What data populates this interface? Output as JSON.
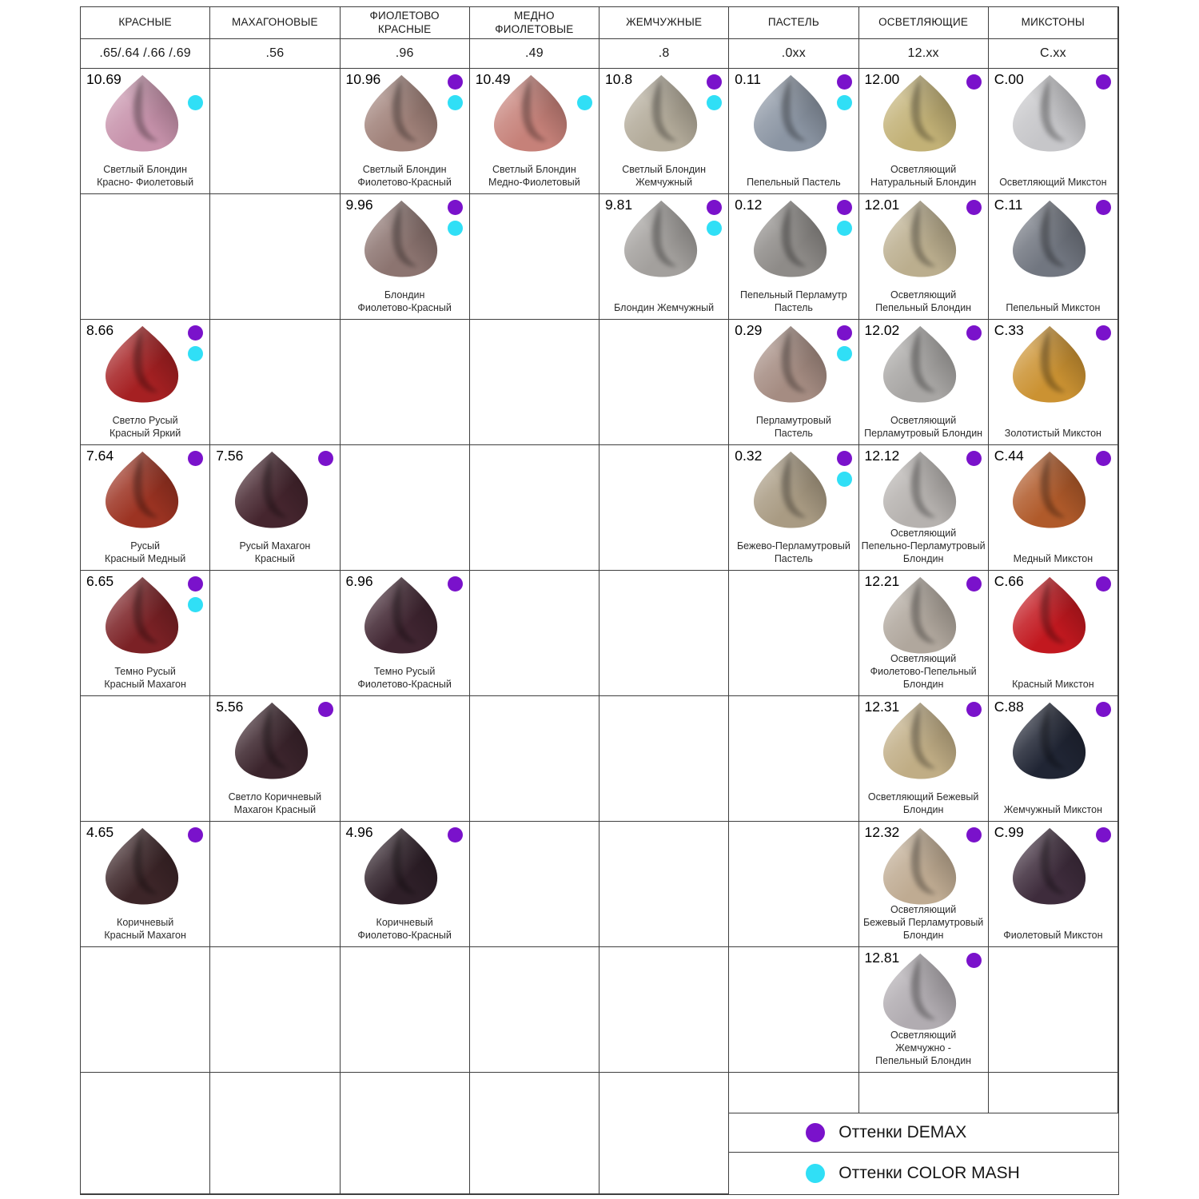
{
  "colors": {
    "demax_dot": "#7a12cb",
    "color_mash_dot": "#30dff6",
    "grid_line": "#3f3f3f"
  },
  "chart_data": {
    "type": "table",
    "columns": [
      {
        "name": "КРАСНЫЕ",
        "code": ".65/.64 /.66 /.69"
      },
      {
        "name": "МАХАГОНОВЫЕ",
        "code": ".56"
      },
      {
        "name": "ФИОЛЕТОВО\nКРАСНЫЕ",
        "code": ".96"
      },
      {
        "name": "МЕДНО\nФИОЛЕТОВЫЕ",
        "code": ".49"
      },
      {
        "name": "ЖЕМЧУЖНЫЕ",
        "code": ".8"
      },
      {
        "name": "ПАСТЕЛЬ",
        "code": ".0xx"
      },
      {
        "name": "ОСВЕТЛЯЮЩИЕ",
        "code": "12.xx"
      },
      {
        "name": "МИКСТОНЫ",
        "code": "C.xx"
      }
    ],
    "rows": [
      {
        "cells": [
          {
            "code": "10.69",
            "label": "Светлый Блондин\nКрасно- Фиолетовый",
            "color": "#c792ab",
            "demax": false,
            "mash": true
          },
          null,
          {
            "code": "10.96",
            "label": "Светлый Блондин\nФиолетово-Красный",
            "color": "#a08179",
            "demax": true,
            "mash": true
          },
          {
            "code": "10.49",
            "label": "Светлый Блондин\nМедно-Фиолетовый",
            "color": "#c68179",
            "demax": false,
            "mash": true
          },
          {
            "code": "10.8",
            "label": "Светлый Блондин\nЖемчужный",
            "color": "#b3ab9a",
            "demax": true,
            "mash": true
          },
          {
            "code": "0.11",
            "label": "Пепельный Пастель",
            "color": "#8b95a3",
            "demax": true,
            "mash": true
          },
          {
            "code": "12.00",
            "label": "Осветляющий\nНатуральный Блондин",
            "color": "#c2b176",
            "demax": true,
            "mash": false
          },
          {
            "code": "C.00",
            "label": "Осветляющий Микстон",
            "color": "#c6c6c9",
            "demax": true,
            "mash": false
          }
        ]
      },
      {
        "cells": [
          null,
          null,
          {
            "code": "9.96",
            "label": "Блондин\nФиолетово-Красный",
            "color": "#8c7470",
            "demax": true,
            "mash": true
          },
          null,
          {
            "code": "9.81",
            "label": "Блондин Жемчужный",
            "color": "#a3a09d",
            "demax": true,
            "mash": true
          },
          {
            "code": "0.12",
            "label": "Пепельный Перламутр\nПастель",
            "color": "#8e8b88",
            "demax": true,
            "mash": true
          },
          {
            "code": "12.01",
            "label": "Осветляющий\nПепельный Блондин",
            "color": "#bbae8e",
            "demax": true,
            "mash": false
          },
          {
            "code": "C.11",
            "label": "Пепельный Микстон",
            "color": "#717680",
            "demax": true,
            "mash": false
          }
        ]
      },
      {
        "cells": [
          {
            "code": "8.66",
            "label": "Светло Русый\nКрасный Яркий",
            "color": "#a52022",
            "demax": true,
            "mash": true
          },
          null,
          null,
          null,
          null,
          {
            "code": "0.29",
            "label": "Перламутровый\nПастель",
            "color": "#a58c82",
            "demax": true,
            "mash": true
          },
          {
            "code": "12.02",
            "label": "Осветляющий\nПерламутровый Блондин",
            "color": "#a8a6a4",
            "demax": true,
            "mash": false
          },
          {
            "code": "C.33",
            "label": "Золотистый Микстон",
            "color": "#cb9232",
            "demax": true,
            "mash": false
          }
        ]
      },
      {
        "cells": [
          {
            "code": "7.64",
            "label": "Русый\nКрасный Медный",
            "color": "#9c3322",
            "demax": true,
            "mash": false
          },
          {
            "code": "7.56",
            "label": "Русый Махагон\nКрасный",
            "color": "#45252e",
            "demax": true,
            "mash": false
          },
          null,
          null,
          null,
          {
            "code": "0.32",
            "label": "Бежево-Перламутровый\nПастель",
            "color": "#a99b83",
            "demax": true,
            "mash": true
          },
          {
            "code": "12.12",
            "label": "Осветляющий\nПепельно-Перламутровый\nБлондин",
            "color": "#b6b2af",
            "demax": true,
            "mash": false
          },
          {
            "code": "C.44",
            "label": "Медный Микстон",
            "color": "#b05a2a",
            "demax": true,
            "mash": false
          }
        ]
      },
      {
        "cells": [
          {
            "code": "6.65",
            "label": "Темно Русый\nКрасный Махагон",
            "color": "#7b2125",
            "demax": true,
            "mash": true
          },
          null,
          {
            "code": "6.96",
            "label": "Темно Русый\nФиолетово-Красный",
            "color": "#402531",
            "demax": true,
            "mash": false
          },
          null,
          null,
          null,
          {
            "code": "12.21",
            "label": "Осветляющий\nФиолетово-Пепельный\nБлондин",
            "color": "#b0a79d",
            "demax": true,
            "mash": false
          },
          {
            "code": "C.66",
            "label": "Красный Микстон",
            "color": "#c2181f",
            "demax": true,
            "mash": false
          }
        ]
      },
      {
        "cells": [
          null,
          {
            "code": "5.56",
            "label": "Светло Коричневый\nМахагон Красный",
            "color": "#3b242c",
            "demax": true,
            "mash": false
          },
          null,
          null,
          null,
          null,
          {
            "code": "12.31",
            "label": "Осветляющий Бежевый\nБлондин",
            "color": "#c0ad85",
            "demax": true,
            "mash": false
          },
          {
            "code": "C.88",
            "label": "Жемчужный Микстон",
            "color": "#202534",
            "demax": true,
            "mash": false
          }
        ]
      },
      {
        "cells": [
          {
            "code": "4.65",
            "label": "Коричневый\nКрасный Махагон",
            "color": "#3c2528",
            "demax": true,
            "mash": false
          },
          null,
          {
            "code": "4.96",
            "label": "Коричневый\nФиолетово-Красный",
            "color": "#2e1f28",
            "demax": true,
            "mash": false
          },
          null,
          null,
          null,
          {
            "code": "12.32",
            "label": "Осветляющий\nБежевый Перламутровый\nБлондин",
            "color": "#bfab92",
            "demax": true,
            "mash": false
          },
          {
            "code": "C.99",
            "label": "Фиолетовый Микстон",
            "color": "#3e2c3c",
            "demax": true,
            "mash": false
          }
        ]
      },
      {
        "cells": [
          null,
          null,
          null,
          null,
          null,
          null,
          {
            "code": "12.81",
            "label": "Осветляющий\nЖемчужно -\nПепельный Блондин",
            "color": "#b1acb1",
            "demax": true,
            "mash": false
          },
          null
        ]
      }
    ],
    "legend": [
      {
        "label": "Оттенки DEMAX",
        "color": "#7a12cb"
      },
      {
        "label": "Оттенки COLOR MASH",
        "color": "#30dff6"
      }
    ]
  }
}
